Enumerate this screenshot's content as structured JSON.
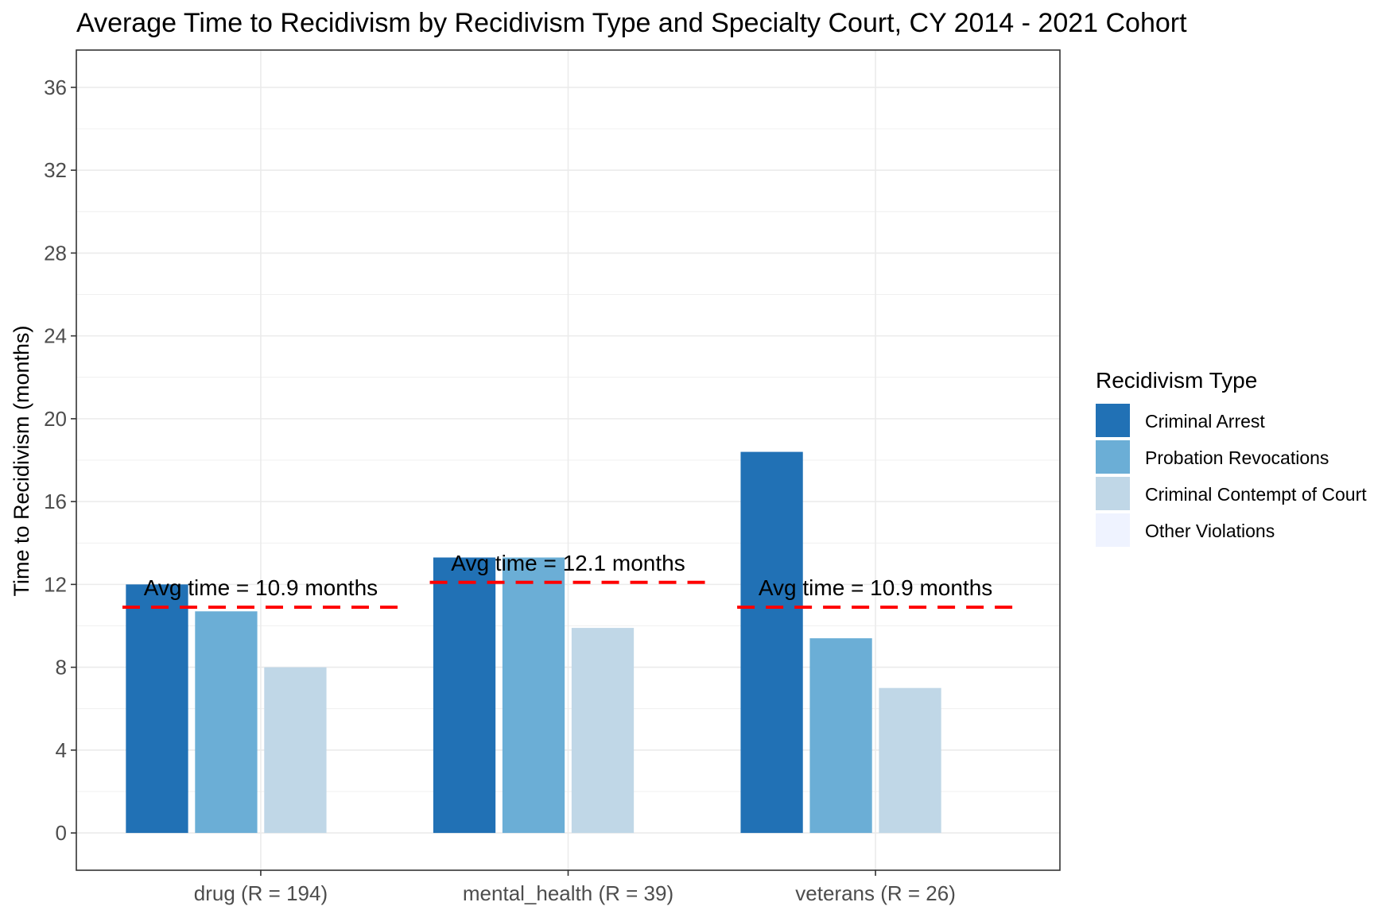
{
  "chart_data": {
    "type": "bar",
    "title": "Average Time to Recidivism by Recidivism Type and Specialty Court, CY 2014 - 2021 Cohort",
    "xlabel": "",
    "ylabel": "Time to Recidivism (months)",
    "ylim": [
      -1.8,
      37.8
    ],
    "yticks": [
      0,
      4,
      8,
      12,
      16,
      20,
      24,
      28,
      32,
      36
    ],
    "grid": true,
    "legend_position": "right",
    "legend_title": "Recidivism Type",
    "categories": [
      "drug (R = 194)",
      "mental_health (R = 39)",
      "veterans (R = 26)"
    ],
    "series": [
      {
        "name": "Criminal Arrest",
        "color": "#2171b5",
        "values": [
          12.0,
          13.3,
          18.4
        ]
      },
      {
        "name": "Probation Revocations",
        "color": "#6baed6",
        "values": [
          10.7,
          13.3,
          9.4
        ]
      },
      {
        "name": "Criminal Contempt of Court",
        "color": "#c0d7e7",
        "values": [
          8.0,
          9.9,
          7.0
        ]
      },
      {
        "name": "Other Violations",
        "color": "#eff3ff",
        "values": [
          null,
          null,
          null
        ]
      }
    ],
    "averages": [
      {
        "value": 10.9,
        "label": "Avg time = 10.9 months"
      },
      {
        "value": 12.1,
        "label": "Avg time = 12.1 months"
      },
      {
        "value": 10.9,
        "label": "Avg time = 10.9 months"
      }
    ],
    "average_line_color": "#ff0000"
  }
}
